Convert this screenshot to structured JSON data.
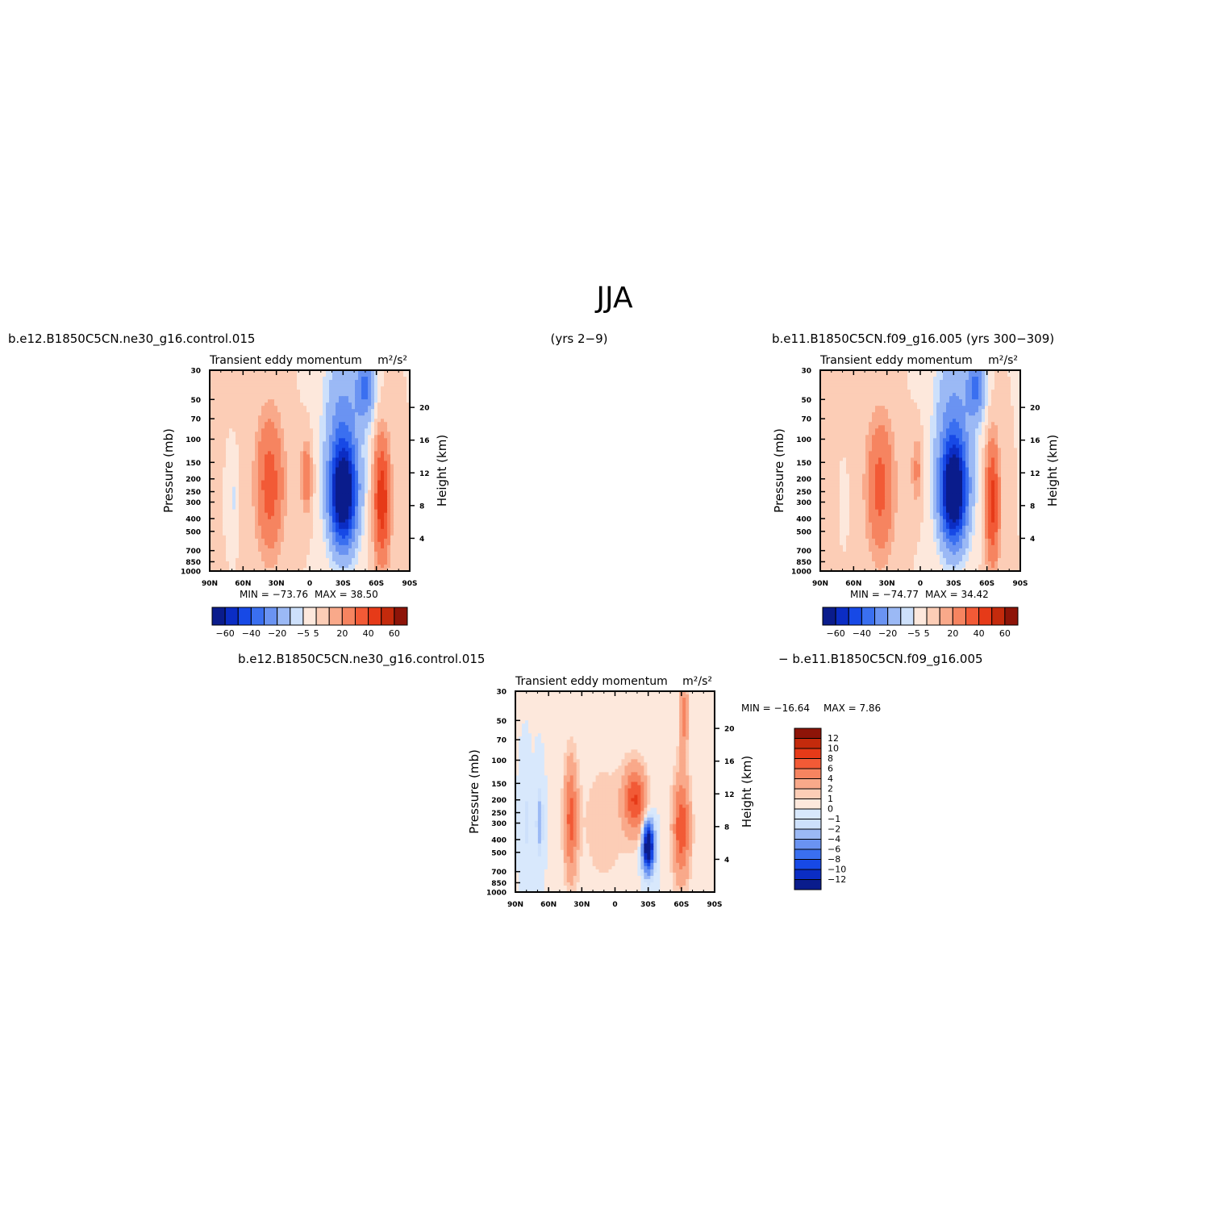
{
  "figure": {
    "title": "JJA",
    "header_left": "b.e12.B1850C5CN.ne30_g16.control.015",
    "header_center": "(yrs 2−9)",
    "header_right": "b.e11.B1850C5CN.f09_g16.005 (yrs 300−309)",
    "diff_left": "b.e12.B1850C5CN.ne30_g16.control.015",
    "diff_right": "− b.e11.B1850C5CN.f09_g16.005"
  },
  "colors": {
    "full_scale": [
      "#0a1c8c",
      "#0b2dc4",
      "#1749e6",
      "#3a6ff0",
      "#6a93f2",
      "#9bb9f5",
      "#cde0fb",
      "#fde8dc",
      "#fccdb6",
      "#f9a98a",
      "#f68460",
      "#f25a36",
      "#e63a18",
      "#c42a0c",
      "#8e1408"
    ],
    "diff_scale": [
      "#0a1c8c",
      "#0b2dc4",
      "#1749e6",
      "#3a6ff0",
      "#6a93f2",
      "#9bb9f5",
      "#cde0fb",
      "#d8e8fc",
      "#fde8dc",
      "#fccdb6",
      "#f9a98a",
      "#f68460",
      "#f25a36",
      "#e63a18",
      "#c42a0c",
      "#8e1408"
    ],
    "zero_fill": "#fde8dc"
  },
  "chart_data": [
    {
      "type": "heatmap",
      "id": "control",
      "title": "Transient eddy momentum",
      "units": "m²/s²",
      "xlabel": "",
      "ylabel": "Pressure (mb)",
      "y2label": "Height (km)",
      "x_ticks": [
        "90N",
        "60N",
        "30N",
        "0",
        "30S",
        "60S",
        "90S"
      ],
      "x_values": [
        90,
        60,
        30,
        0,
        -30,
        -60,
        -90
      ],
      "y_ticks": [
        30,
        50,
        70,
        100,
        150,
        200,
        250,
        300,
        400,
        500,
        700,
        850,
        1000
      ],
      "y_scale": "log",
      "ylim": [
        1000,
        30
      ],
      "height_ticks": [
        4,
        8,
        12,
        16,
        20
      ],
      "min_label": "MIN = −73.76",
      "max_label": "MAX = 38.50",
      "contour_levels": [
        -60,
        -50,
        -40,
        -30,
        -20,
        -10,
        -5,
        0,
        5,
        10,
        20,
        30,
        40,
        50,
        60
      ],
      "colorbar_labels": [
        "−60",
        "−40",
        "−20",
        "−5",
        "5",
        "20",
        "40",
        "60"
      ],
      "features": [
        {
          "lat": -30,
          "p": 270,
          "peak": -73.76,
          "dlat": 12,
          "dlog": 0.38
        },
        {
          "lat": -30,
          "p": 80,
          "peak": -22,
          "dlat": 16,
          "dlog": 0.6
        },
        {
          "lat": -50,
          "p": 40,
          "peak": -30,
          "dlat": 8,
          "dlog": 0.25
        },
        {
          "lat": 36,
          "p": 220,
          "peak": 26,
          "dlat": 12,
          "dlog": 0.5
        },
        {
          "lat": 3,
          "p": 190,
          "peak": 18,
          "dlat": 5,
          "dlog": 0.25
        },
        {
          "lat": -65,
          "p": 290,
          "peak": 38.5,
          "dlat": 7,
          "dlog": 0.45
        },
        {
          "lat": 68,
          "p": 280,
          "peak": -6,
          "dlat": 3,
          "dlog": 0.2
        }
      ]
    },
    {
      "type": "heatmap",
      "id": "reference",
      "title": "Transient eddy momentum",
      "units": "m²/s²",
      "xlabel": "",
      "ylabel": "Pressure (mb)",
      "y2label": "Height (km)",
      "x_ticks": [
        "90N",
        "60N",
        "30N",
        "0",
        "30S",
        "60S",
        "90S"
      ],
      "x_values": [
        90,
        60,
        30,
        0,
        -30,
        -60,
        -90
      ],
      "y_ticks": [
        30,
        50,
        70,
        100,
        150,
        200,
        250,
        300,
        400,
        500,
        700,
        850,
        1000
      ],
      "y_scale": "log",
      "ylim": [
        1000,
        30
      ],
      "height_ticks": [
        4,
        8,
        12,
        16,
        20
      ],
      "min_label": "MIN = −74.77",
      "max_label": "MAX =   34.42",
      "contour_levels": [
        -60,
        -50,
        -40,
        -30,
        -20,
        -10,
        -5,
        0,
        5,
        10,
        20,
        30,
        40,
        50,
        60
      ],
      "colorbar_labels": [
        "−60",
        "−40",
        "−20",
        "−5",
        "5",
        "20",
        "40",
        "60"
      ],
      "features": [
        {
          "lat": -30,
          "p": 260,
          "peak": -74.77,
          "dlat": 12,
          "dlog": 0.38
        },
        {
          "lat": -30,
          "p": 80,
          "peak": -22,
          "dlat": 16,
          "dlog": 0.6
        },
        {
          "lat": -50,
          "p": 40,
          "peak": -30,
          "dlat": 8,
          "dlog": 0.25
        },
        {
          "lat": 36,
          "p": 230,
          "peak": 24,
          "dlat": 12,
          "dlog": 0.5
        },
        {
          "lat": 3,
          "p": 170,
          "peak": 12,
          "dlat": 5,
          "dlog": 0.25
        },
        {
          "lat": -65,
          "p": 300,
          "peak": 34.42,
          "dlat": 6,
          "dlog": 0.45
        },
        {
          "lat": 68,
          "p": 300,
          "peak": -3,
          "dlat": 2,
          "dlog": 0.15
        }
      ]
    },
    {
      "type": "heatmap",
      "id": "difference",
      "title": "Transient eddy momentum",
      "units": "m²/s²",
      "xlabel": "",
      "ylabel": "Pressure (mb)",
      "y2label": "Height (km)",
      "x_ticks": [
        "90N",
        "60N",
        "30N",
        "0",
        "30S",
        "60S",
        "90S"
      ],
      "x_values": [
        90,
        60,
        30,
        0,
        -30,
        -60,
        -90
      ],
      "y_ticks": [
        30,
        50,
        70,
        100,
        150,
        200,
        250,
        300,
        400,
        500,
        700,
        850,
        1000
      ],
      "y_scale": "log",
      "ylim": [
        1000,
        30
      ],
      "height_ticks": [
        4,
        8,
        12,
        16,
        20
      ],
      "min_label": "MIN = −16.64",
      "max_label": "MAX =    7.86",
      "contour_levels": [
        -12,
        -10,
        -8,
        -6,
        -4,
        -2,
        -1,
        0,
        1,
        2,
        4,
        6,
        8,
        10,
        12
      ],
      "colorbar_labels": [
        "12",
        "10",
        "8",
        "6",
        "4",
        "2",
        "1",
        "0",
        "−1",
        "−2",
        "−4",
        "−6",
        "−8",
        "−10",
        "−12"
      ],
      "features": [
        {
          "lat": 40,
          "p": 280,
          "peak": 6.5,
          "dlat": 6,
          "dlog": 0.45
        },
        {
          "lat": -18,
          "p": 200,
          "peak": 7.86,
          "dlat": 10,
          "dlog": 0.25
        },
        {
          "lat": -60,
          "p": 330,
          "peak": 7.5,
          "dlat": 8,
          "dlog": 0.4
        },
        {
          "lat": -62,
          "p": 45,
          "peak": 5,
          "dlat": 4,
          "dlog": 0.3
        },
        {
          "lat": -30,
          "p": 450,
          "peak": -16.64,
          "dlat": 5,
          "dlog": 0.18
        },
        {
          "lat": 68,
          "p": 300,
          "peak": -3,
          "dlat": 3,
          "dlog": 0.25
        },
        {
          "lat": 80,
          "p": 300,
          "peak": -1.5,
          "dlat": 3,
          "dlog": 0.25
        },
        {
          "lat": 10,
          "p": 300,
          "peak": 1.5,
          "dlat": 25,
          "dlog": 0.6
        }
      ]
    }
  ]
}
